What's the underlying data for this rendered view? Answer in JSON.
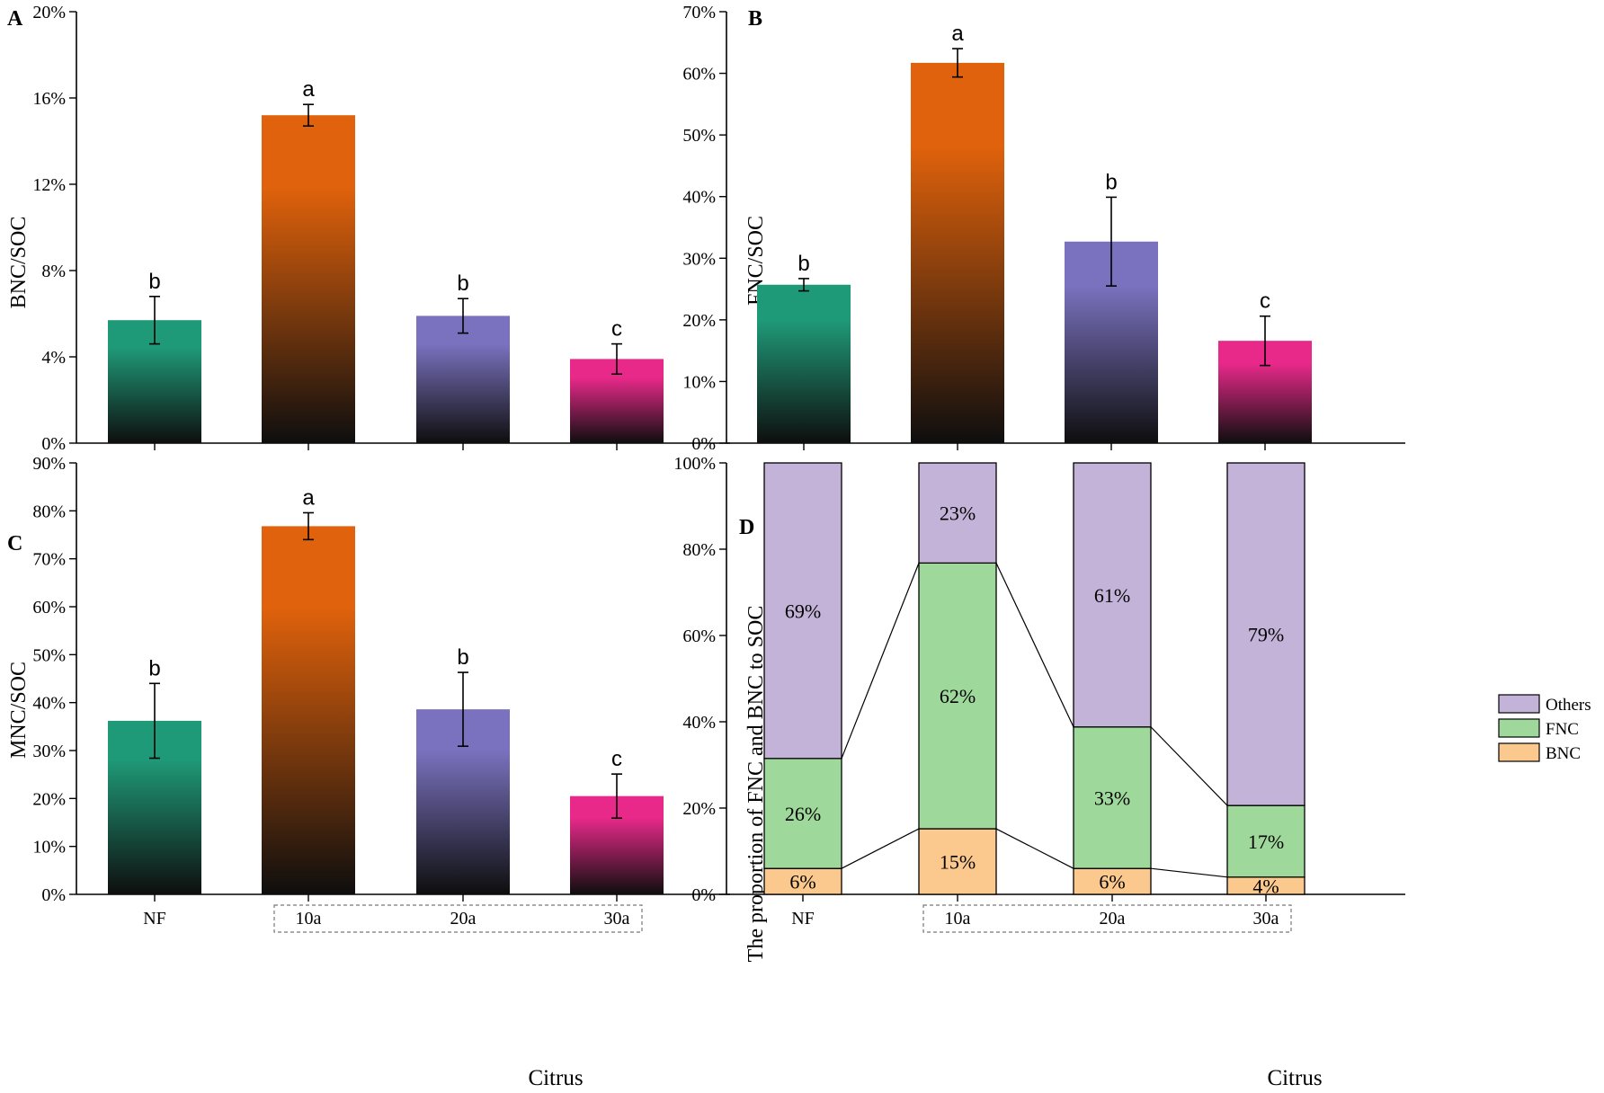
{
  "colors": {
    "nf": "#1f9a78",
    "a10": "#e0620c",
    "a20": "#7a72bf",
    "a30": "#e8298a",
    "dark": "#0e0e0e",
    "others": "#c4b3d8",
    "fnc": "#9fd89b",
    "bnc": "#fbc98e",
    "axis": "#000000"
  },
  "panels": {
    "A": {
      "letter": "A"
    },
    "B": {
      "letter": "B"
    },
    "C": {
      "letter": "C"
    },
    "D": {
      "letter": "D"
    }
  },
  "x_axis": {
    "categories": [
      "NF",
      "10a",
      "20a",
      "30a"
    ],
    "group_label": "Citrus"
  },
  "chart_data": [
    {
      "panel": "A",
      "type": "bar",
      "title": "",
      "ylabel": "BNC/SOC",
      "xlabel": "",
      "categories": [
        "NF",
        "10a",
        "20a",
        "30a"
      ],
      "values": [
        5.7,
        15.2,
        5.9,
        3.9
      ],
      "errors": [
        1.1,
        0.5,
        0.8,
        0.7
      ],
      "significance": [
        "b",
        "a",
        "b",
        "c"
      ],
      "ylim": [
        0,
        20
      ],
      "yticks": [
        0,
        4,
        8,
        12,
        16,
        20
      ],
      "ytick_labels": [
        "0%",
        "4%",
        "8%",
        "12%",
        "16%",
        "20%"
      ]
    },
    {
      "panel": "B",
      "type": "bar",
      "title": "",
      "ylabel": "FNC/SOC",
      "xlabel": "",
      "categories": [
        "NF",
        "10a",
        "20a",
        "30a"
      ],
      "values": [
        25.7,
        61.7,
        32.7,
        16.6
      ],
      "errors": [
        1.0,
        2.3,
        7.2,
        4.0
      ],
      "significance": [
        "b",
        "a",
        "b",
        "c"
      ],
      "ylim": [
        0,
        70
      ],
      "yticks": [
        0,
        10,
        20,
        30,
        40,
        50,
        60,
        70
      ],
      "ytick_labels": [
        "0%",
        "10%",
        "20%",
        "30%",
        "40%",
        "50%",
        "60%",
        "70%"
      ]
    },
    {
      "panel": "C",
      "type": "bar",
      "title": "",
      "ylabel": "MNC/SOC",
      "xlabel": "Citrus",
      "categories": [
        "NF",
        "10a",
        "20a",
        "30a"
      ],
      "values": [
        36.2,
        76.8,
        38.6,
        20.5
      ],
      "errors": [
        7.8,
        2.8,
        7.7,
        4.6
      ],
      "significance": [
        "b",
        "a",
        "b",
        "c"
      ],
      "ylim": [
        0,
        90
      ],
      "yticks": [
        0,
        10,
        20,
        30,
        40,
        50,
        60,
        70,
        80,
        90
      ],
      "ytick_labels": [
        "0%",
        "10%",
        "20%",
        "30%",
        "40%",
        "50%",
        "60%",
        "70%",
        "80%",
        "90%"
      ]
    },
    {
      "panel": "D",
      "type": "bar",
      "stacked": true,
      "title": "",
      "ylabel": "The proportion of FNC and BNC to SOC",
      "xlabel": "Citrus",
      "categories": [
        "NF",
        "10a",
        "20a",
        "30a"
      ],
      "series": [
        {
          "name": "BNC",
          "values": [
            6,
            15.2,
            6,
            4
          ],
          "labels": [
            "6%",
            "15%",
            "6%",
            "4%"
          ]
        },
        {
          "name": "FNC",
          "values": [
            25.5,
            61.6,
            32.8,
            16.6
          ],
          "labels": [
            "26%",
            "62%",
            "33%",
            "17%"
          ]
        },
        {
          "name": "Others",
          "values": [
            68.5,
            23.2,
            61.2,
            79.4
          ],
          "labels": [
            "69%",
            "23%",
            "61%",
            "79%"
          ]
        }
      ],
      "legend": [
        "Others",
        "FNC",
        "BNC"
      ],
      "legend_position": "right",
      "ylim": [
        0,
        100
      ],
      "yticks": [
        0,
        20,
        40,
        60,
        80,
        100
      ],
      "ytick_labels": [
        "0%",
        "20%",
        "40%",
        "60%",
        "80%",
        "100%"
      ]
    }
  ]
}
